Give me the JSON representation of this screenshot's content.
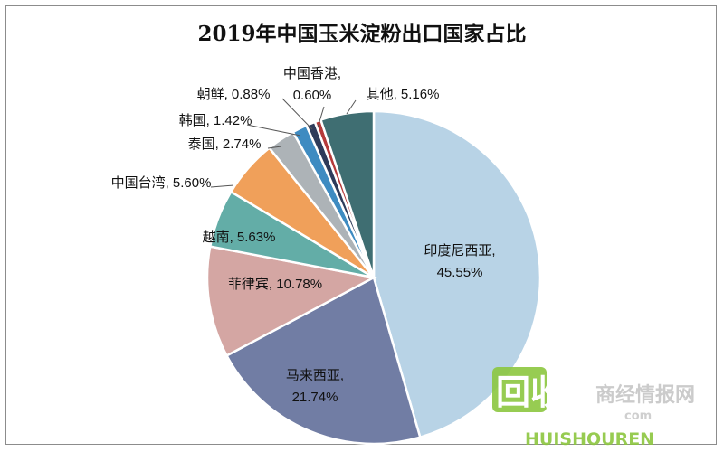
{
  "chart_data": {
    "type": "pie",
    "title": "2019年中国玉米淀粉出口国家占比",
    "slices": [
      {
        "name": "印度尼西亚",
        "value": 45.55,
        "display": "45.55%",
        "color": "#b8d3e6"
      },
      {
        "name": "马来西亚",
        "value": 21.74,
        "display": "21.74%",
        "color": "#717da4"
      },
      {
        "name": "菲律宾",
        "value": 10.78,
        "display": "10.78%",
        "color": "#d4a6a3"
      },
      {
        "name": "越南",
        "value": 5.63,
        "display": "5.63%",
        "color": "#63ada7"
      },
      {
        "name": "中国台湾",
        "value": 5.6,
        "display": "5.60%",
        "color": "#f0a05a"
      },
      {
        "name": "泰国",
        "value": 2.74,
        "display": "2.74%",
        "color": "#adb3b7"
      },
      {
        "name": "韩国",
        "value": 1.42,
        "display": "1.42%",
        "color": "#3e8bc1"
      },
      {
        "name": "朝鲜",
        "value": 0.88,
        "display": "0.88%",
        "color": "#2e3b5a"
      },
      {
        "name": "中国香港",
        "value": 0.6,
        "display": "0.60%",
        "color": "#b53a3a"
      },
      {
        "name": "其他",
        "value": 5.16,
        "display": "5.16%",
        "color": "#3f6e72"
      }
    ]
  },
  "watermark": {
    "main": "回收",
    "sub": "HUISHOUREN",
    "site": "商经情报网",
    "domain": "com"
  }
}
